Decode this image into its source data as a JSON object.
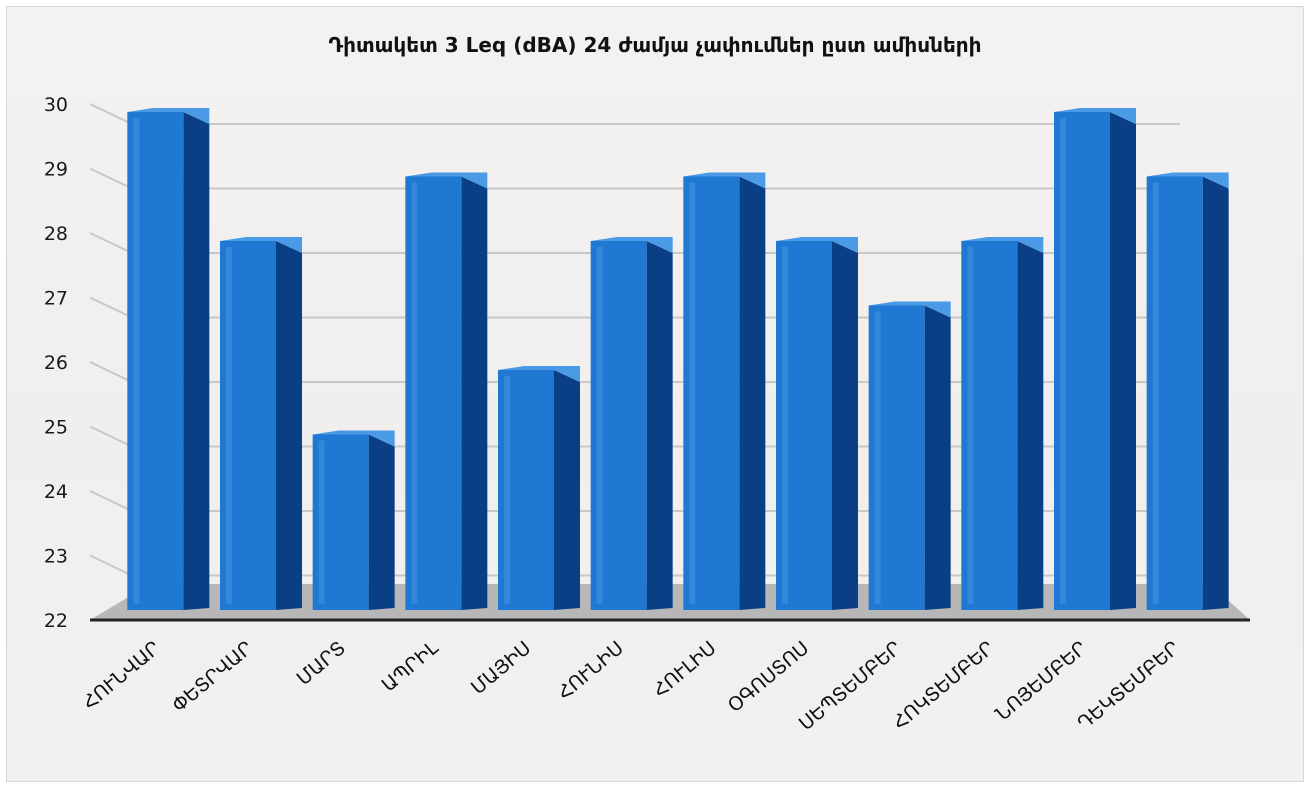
{
  "chart_data": {
    "type": "bar",
    "title": "Դիտակետ 3 Leq (dBA) 24 ժամյա չափումներ ըստ ամիսների",
    "xlabel": "",
    "ylabel": "",
    "categories": [
      "ՀՈՒՆՎԱՐ",
      "ՓԵՏՐՎԱՐ",
      "ՄԱՐՏ",
      "ԱՊՐԻԼ",
      "ՄԱՅԻՍ",
      "ՀՈՒՆԻՍ",
      "ՀՈՒԼԻՍ",
      "ՕԳՈՍՏՈՍ",
      "ՍԵՊՏԵՄԲԵՐ",
      "ՀՈԿՏԵՄԲԵՐ",
      "ՆՈՅԵՄԲԵՐ",
      "ԴԵԿՏԵՄԲԵՐ"
    ],
    "values": [
      30,
      28,
      25,
      29,
      26,
      28,
      29,
      28,
      27,
      28,
      30,
      29
    ],
    "ylim": [
      22,
      30
    ],
    "yticks": [
      "22",
      "23",
      "24",
      "25",
      "26",
      "27",
      "28",
      "29",
      "30"
    ],
    "grid": true,
    "legend": "none",
    "bar_color": "#1f78d1",
    "bar_side_color": "#0a3f86",
    "bar_top_color": "#4a9ae6",
    "floor_color": "#b7b7b7",
    "gridline_color": "#c8c8c8"
  }
}
